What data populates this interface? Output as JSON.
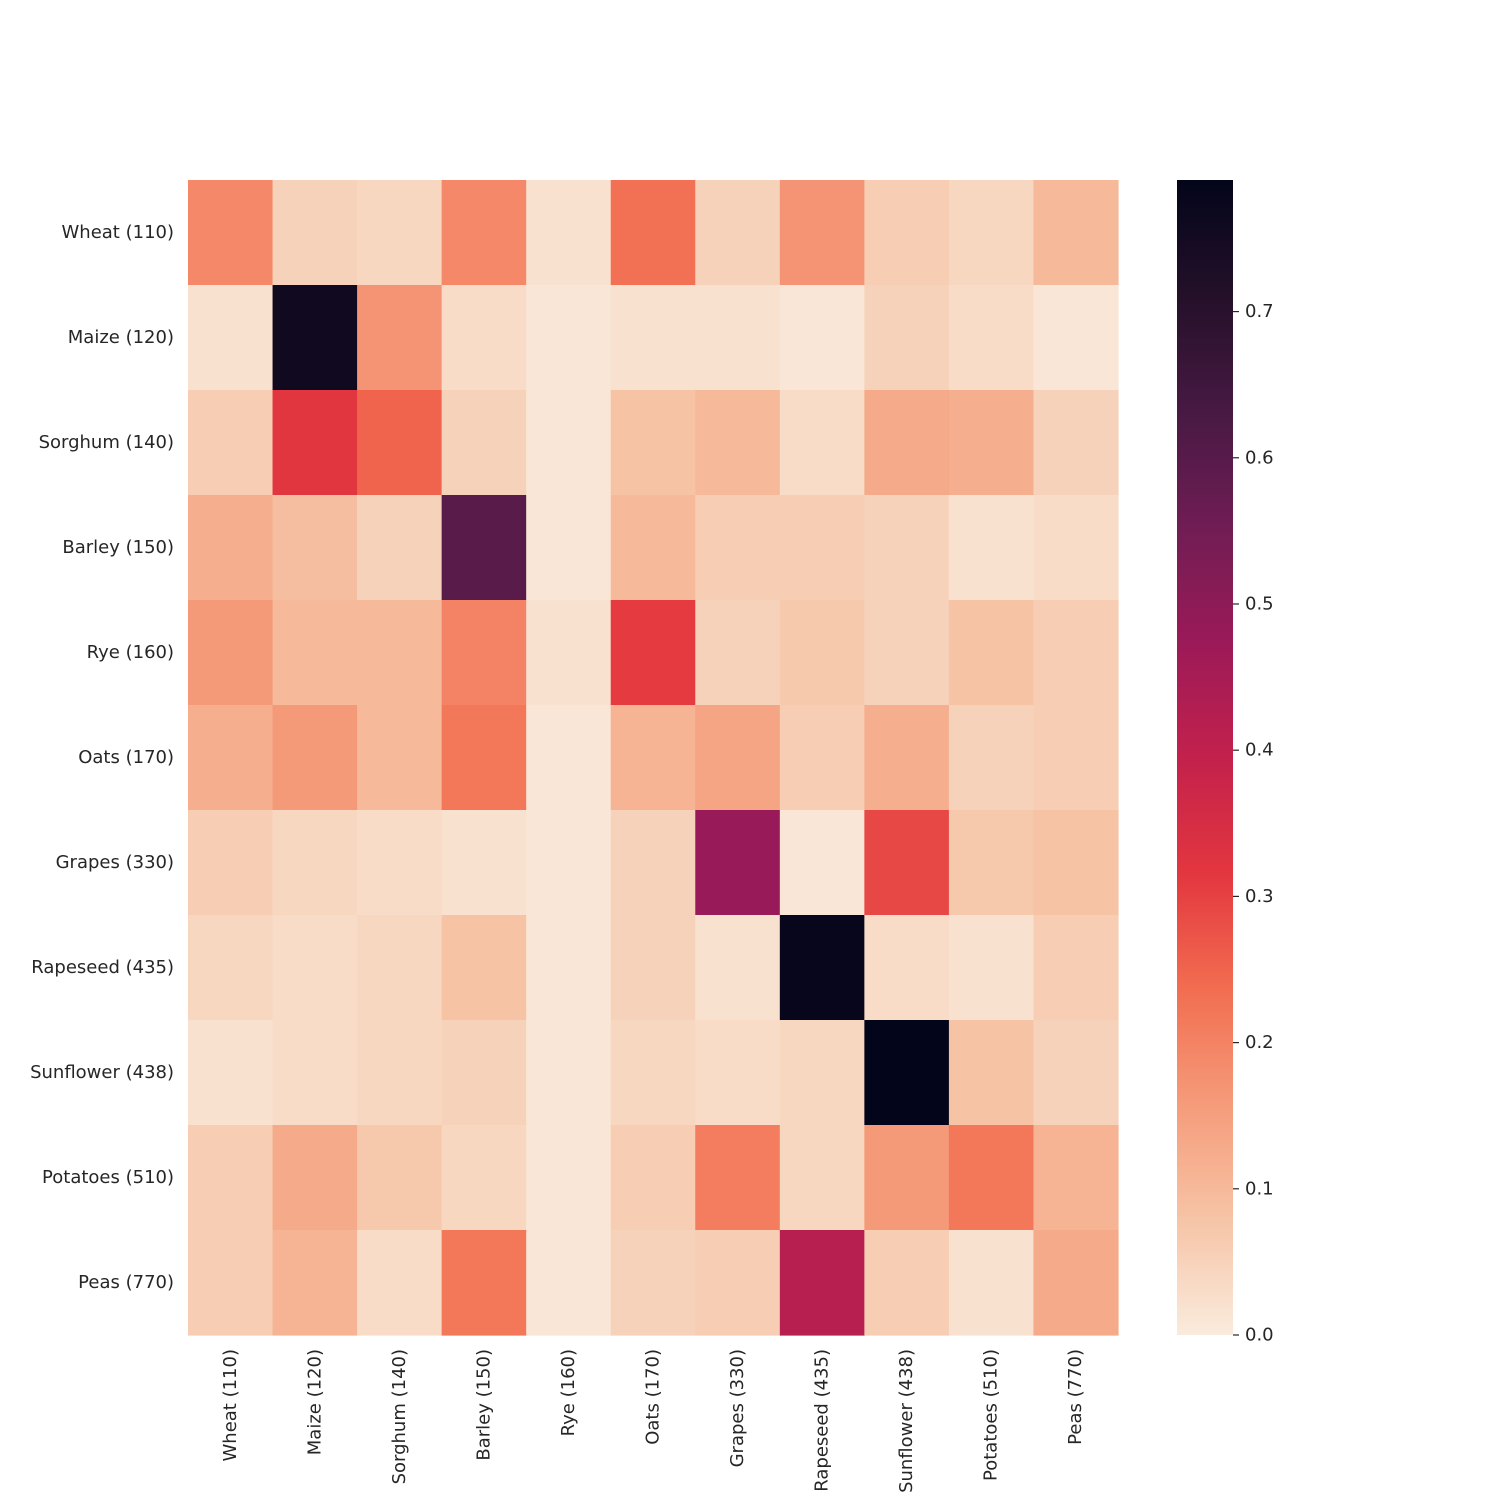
{
  "chart_data": {
    "type": "heatmap",
    "title": "",
    "xlabel": "",
    "ylabel": "",
    "row_labels": [
      "Wheat (110)",
      "Maize (120)",
      "Sorghum (140)",
      "Barley (150)",
      "Rye (160)",
      "Oats (170)",
      "Grapes (330)",
      "Rapeseed (435)",
      "Sunflower (438)",
      "Potatoes (510)",
      "Peas (770)"
    ],
    "col_labels": [
      "Wheat (110)",
      "Maize (120)",
      "Sorghum (140)",
      "Barley (150)",
      "Rye (160)",
      "Oats (170)",
      "Grapes (330)",
      "Rapeseed (435)",
      "Sunflower (438)",
      "Potatoes (510)",
      "Peas (770)"
    ],
    "values": [
      [
        0.19,
        0.05,
        0.04,
        0.19,
        0.02,
        0.23,
        0.05,
        0.17,
        0.06,
        0.04,
        0.1
      ],
      [
        0.02,
        0.76,
        0.17,
        0.03,
        0.01,
        0.02,
        0.02,
        0.01,
        0.05,
        0.03,
        0.01
      ],
      [
        0.06,
        0.32,
        0.25,
        0.05,
        0.01,
        0.08,
        0.1,
        0.03,
        0.13,
        0.12,
        0.05
      ],
      [
        0.12,
        0.09,
        0.05,
        0.6,
        0.01,
        0.1,
        0.06,
        0.06,
        0.05,
        0.02,
        0.03
      ],
      [
        0.16,
        0.1,
        0.1,
        0.2,
        0.02,
        0.31,
        0.05,
        0.07,
        0.05,
        0.08,
        0.06
      ],
      [
        0.12,
        0.16,
        0.1,
        0.22,
        0.01,
        0.11,
        0.14,
        0.06,
        0.12,
        0.05,
        0.06
      ],
      [
        0.06,
        0.04,
        0.03,
        0.02,
        0.01,
        0.05,
        0.48,
        0.01,
        0.29,
        0.07,
        0.08
      ],
      [
        0.04,
        0.03,
        0.04,
        0.08,
        0.01,
        0.05,
        0.02,
        0.78,
        0.03,
        0.02,
        0.06
      ],
      [
        0.02,
        0.03,
        0.04,
        0.05,
        0.01,
        0.04,
        0.03,
        0.04,
        0.79,
        0.08,
        0.05
      ],
      [
        0.06,
        0.13,
        0.07,
        0.04,
        0.01,
        0.06,
        0.21,
        0.04,
        0.16,
        0.22,
        0.11
      ],
      [
        0.06,
        0.11,
        0.03,
        0.22,
        0.01,
        0.05,
        0.06,
        0.42,
        0.06,
        0.02,
        0.13
      ]
    ],
    "vmin": 0.0,
    "vmax": 0.79,
    "colormap": "rocket_r",
    "colorbar_ticks": [
      "0.0",
      "0.1",
      "0.2",
      "0.3",
      "0.4",
      "0.5",
      "0.6",
      "0.7"
    ],
    "colorbar_tick_values": [
      0.0,
      0.1,
      0.2,
      0.3,
      0.4,
      0.5,
      0.6,
      0.7
    ],
    "grid": false,
    "colorbar_position": "right"
  }
}
